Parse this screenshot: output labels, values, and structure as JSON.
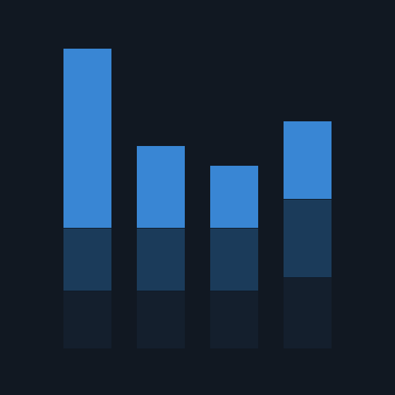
{
  "background_color": "#111822",
  "chart_data": {
    "type": "bar",
    "stacked": true,
    "categories": [
      "",
      "",
      "",
      ""
    ],
    "series": [
      {
        "color": "#141f2d",
        "values": [
          82,
          82,
          82,
          101
        ]
      },
      {
        "color": "#1b3b5a",
        "values": [
          89,
          89,
          89,
          111
        ]
      },
      {
        "color": "#3986d4",
        "values": [
          254,
          116,
          88,
          110
        ]
      }
    ],
    "ylim": [
      0,
      426
    ],
    "grid": false,
    "legend": "none",
    "segment_separator_color": "#0f1a27"
  }
}
